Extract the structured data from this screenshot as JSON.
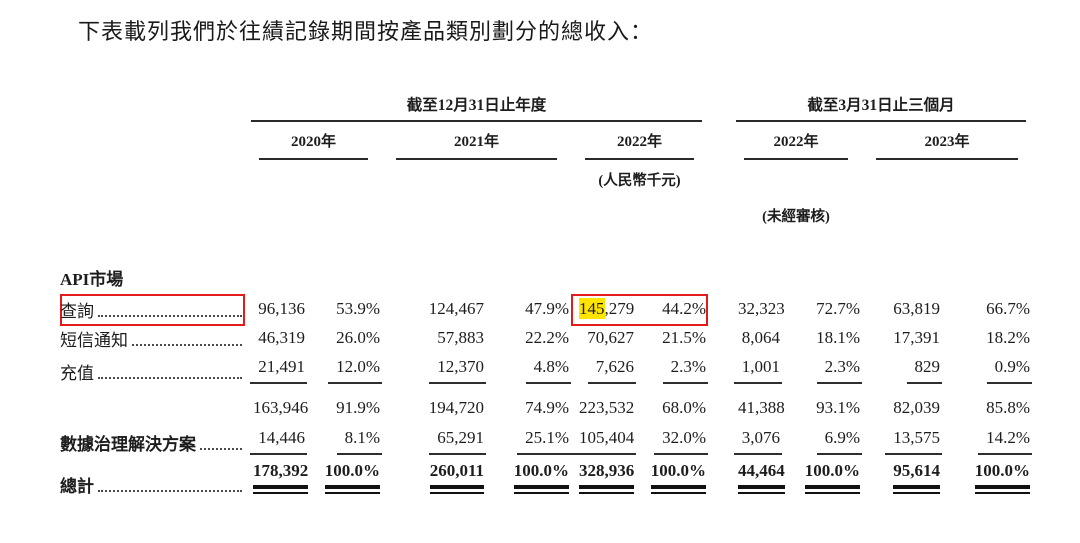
{
  "page": {
    "title": "下表載列我們於往績記錄期間按產品類別劃分的總收入："
  },
  "colors": {
    "annotation_red": "#e41b1b",
    "highlight_yellow": "#ffe400",
    "ink": "#1d1d1d"
  },
  "table": {
    "group_headers": [
      {
        "label": "截至12月31日止年度"
      },
      {
        "label": "截至3月31日止三個月"
      }
    ],
    "year_headers": [
      "2020年",
      "2021年",
      "2022年",
      "2022年",
      "2023年"
    ],
    "notes": {
      "currency": "(人民幣千元)",
      "unaudited": "(未經審核)"
    },
    "highlight": {
      "prefix": "145",
      "rest": ",279"
    },
    "rows": [
      {
        "label": "API市場",
        "bold": true,
        "dots": false,
        "rule": false,
        "total": false,
        "redbox": false,
        "values": [
          "",
          "",
          "",
          "",
          "",
          "",
          "",
          "",
          "",
          ""
        ]
      },
      {
        "label": "查詢",
        "bold": false,
        "dots": true,
        "rule": false,
        "total": false,
        "redbox": true,
        "values": [
          "96,136",
          "53.9%",
          "124,467",
          "47.9%",
          "145,279",
          "44.2%",
          "32,323",
          "72.7%",
          "63,819",
          "66.7%"
        ]
      },
      {
        "label": "短信通知",
        "bold": false,
        "dots": true,
        "rule": false,
        "total": false,
        "redbox": false,
        "values": [
          "46,319",
          "26.0%",
          "57,883",
          "22.2%",
          "70,627",
          "21.5%",
          "8,064",
          "18.1%",
          "17,391",
          "18.2%"
        ]
      },
      {
        "label": "充值",
        "bold": false,
        "dots": true,
        "rule": true,
        "total": false,
        "redbox": false,
        "values": [
          "21,491",
          "12.0%",
          "12,370",
          "4.8%",
          "7,626",
          "2.3%",
          "1,001",
          "2.3%",
          "829",
          "0.9%"
        ]
      },
      {
        "label": "",
        "bold": false,
        "dots": false,
        "rule": false,
        "total": false,
        "redbox": false,
        "values": [
          "163,946",
          "91.9%",
          "194,720",
          "74.9%",
          "223,532",
          "68.0%",
          "41,388",
          "93.1%",
          "82,039",
          "85.8%"
        ]
      },
      {
        "label": "數據治理解決方案",
        "bold": true,
        "dots": true,
        "rule": true,
        "total": false,
        "redbox": false,
        "values": [
          "14,446",
          "8.1%",
          "65,291",
          "25.1%",
          "105,404",
          "32.0%",
          "3,076",
          "6.9%",
          "13,575",
          "14.2%"
        ]
      },
      {
        "label": "總計",
        "bold": true,
        "dots": true,
        "rule": false,
        "total": true,
        "redbox": false,
        "values": [
          "178,392",
          "100.0%",
          "260,011",
          "100.0%",
          "328,936",
          "100.0%",
          "44,464",
          "100.0%",
          "95,614",
          "100.0%"
        ]
      }
    ]
  }
}
